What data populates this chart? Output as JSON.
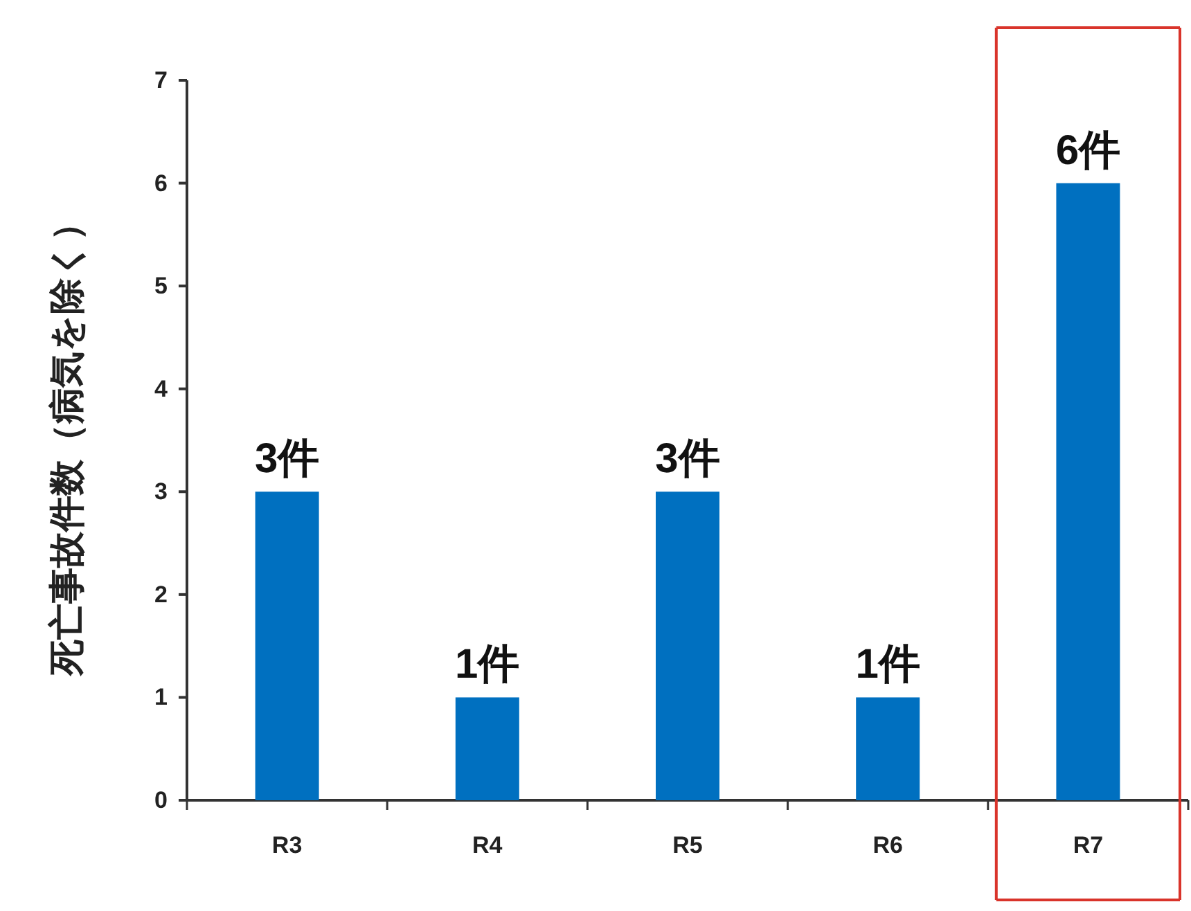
{
  "chart_data": {
    "type": "bar",
    "ylabel": "死亡事故件数（病気を除く）",
    "categories": [
      "R3",
      "R4",
      "R5",
      "R6",
      "R7"
    ],
    "values": [
      3,
      1,
      3,
      1,
      6
    ],
    "value_labels": [
      "3件",
      "1件",
      "3件",
      "1件",
      "6件"
    ],
    "color": "#0070c0",
    "ylim": [
      0,
      7
    ],
    "yticks": [
      0,
      1,
      2,
      3,
      4,
      5,
      6,
      7
    ],
    "grid": false
  }
}
